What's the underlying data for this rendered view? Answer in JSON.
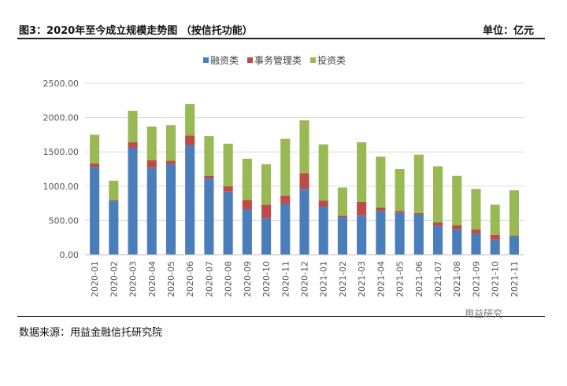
{
  "header": {
    "title": "图3：2020年至今成立规模走势图 （按信托功能）",
    "unit": "单位：亿元"
  },
  "footer": {
    "source": "数据来源：用益金融信托研究院",
    "watermark": "用益研究"
  },
  "chart_data": {
    "type": "bar",
    "stacked": true,
    "grid": true,
    "legend_position": "top",
    "ylim": [
      0,
      2500
    ],
    "yticks": [
      "0.00",
      "500.00",
      "1000.00",
      "1500.00",
      "2000.00",
      "2500.00"
    ],
    "categories": [
      "2020-01",
      "2020-02",
      "2020-03",
      "2020-04",
      "2020-05",
      "2020-06",
      "2020-07",
      "2020-08",
      "2020-09",
      "2020-10",
      "2020-11",
      "2020-12",
      "2021-01",
      "2021-02",
      "2021-03",
      "2021-04",
      "2021-05",
      "2021-06",
      "2021-07",
      "2021-08",
      "2021-09",
      "2021-10",
      "2021-11"
    ],
    "series": [
      {
        "name": "融资类",
        "color": "#4a7ebb",
        "values": [
          1280,
          790,
          1560,
          1270,
          1320,
          1600,
          1110,
          920,
          660,
          530,
          740,
          960,
          700,
          550,
          570,
          640,
          610,
          590,
          420,
          370,
          310,
          220,
          270
        ]
      },
      {
        "name": "事务管理类",
        "color": "#be4b48",
        "values": [
          50,
          10,
          80,
          110,
          50,
          140,
          40,
          80,
          140,
          200,
          120,
          230,
          90,
          20,
          200,
          50,
          30,
          20,
          50,
          60,
          60,
          70,
          10
        ]
      },
      {
        "name": "投资类",
        "color": "#98b954",
        "values": [
          420,
          280,
          460,
          490,
          520,
          460,
          580,
          620,
          600,
          590,
          830,
          770,
          820,
          410,
          870,
          740,
          610,
          850,
          820,
          720,
          590,
          440,
          660
        ]
      }
    ]
  }
}
